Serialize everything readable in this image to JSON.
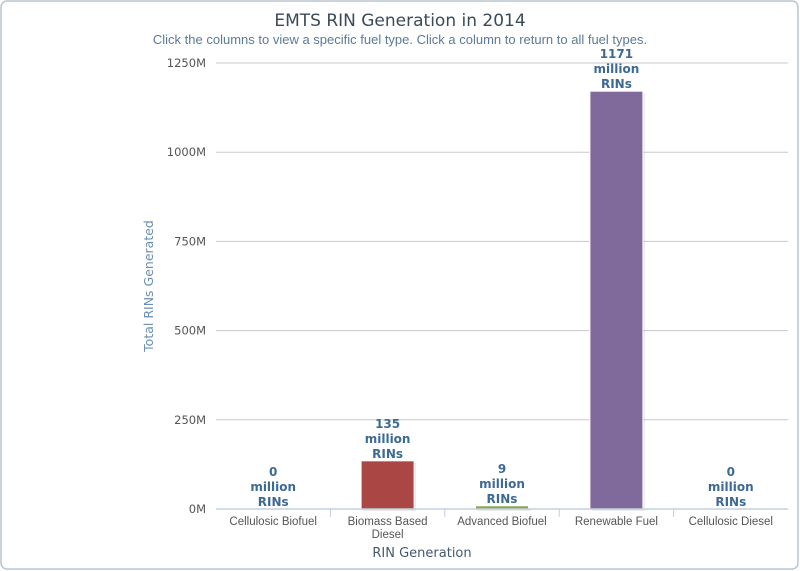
{
  "chart_data": {
    "type": "bar",
    "title": "EMTS RIN Generation in 2014",
    "subtitle": "Click the columns to view a specific fuel type. Click a column to return to all fuel types.",
    "xlabel": "RIN Generation",
    "ylabel": "Total RINs Generated",
    "categories": [
      "Cellulosic Biofuel",
      "Biomass Based Diesel",
      "Advanced Biofuel",
      "Renewable Fuel",
      "Cellulosic Diesel"
    ],
    "values": [
      0,
      135,
      9,
      1171,
      0
    ],
    "value_unit": "million",
    "data_labels": [
      [
        "0",
        "million",
        "RINs"
      ],
      [
        "135",
        "million",
        "RINs"
      ],
      [
        "9",
        "million",
        "RINs"
      ],
      [
        "1171",
        "million",
        "RINs"
      ],
      [
        "0",
        "million",
        "RINs"
      ]
    ],
    "colors": [
      "#4572a7",
      "#aa4643",
      "#89a54e",
      "#80699b",
      "#3d96ae"
    ],
    "ylim": [
      0,
      1250
    ],
    "yticks": [
      0,
      250,
      500,
      750,
      1000,
      1250
    ],
    "ytick_labels": [
      "0M",
      "250M",
      "500M",
      "750M",
      "1000M",
      "1250M"
    ],
    "grid": true,
    "legend": "none"
  }
}
